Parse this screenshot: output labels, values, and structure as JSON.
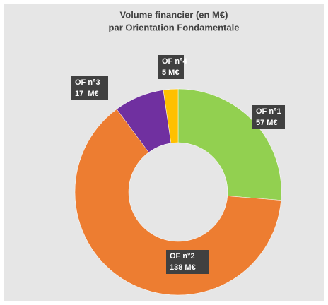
{
  "chart_data": {
    "type": "donut",
    "title": "Volume financier (en M€)",
    "subtitle": "par Orientation Fondamentale",
    "categories": [
      "OF n°1",
      "OF n°2",
      "OF n°3",
      "OF n°4"
    ],
    "values": [
      57,
      138,
      17,
      5
    ],
    "value_labels": [
      "57 M€",
      "138 M€",
      "17  M€",
      "5 M€"
    ],
    "colors": [
      "#92d050",
      "#ed7d31",
      "#7030a0",
      "#ffc000"
    ]
  }
}
